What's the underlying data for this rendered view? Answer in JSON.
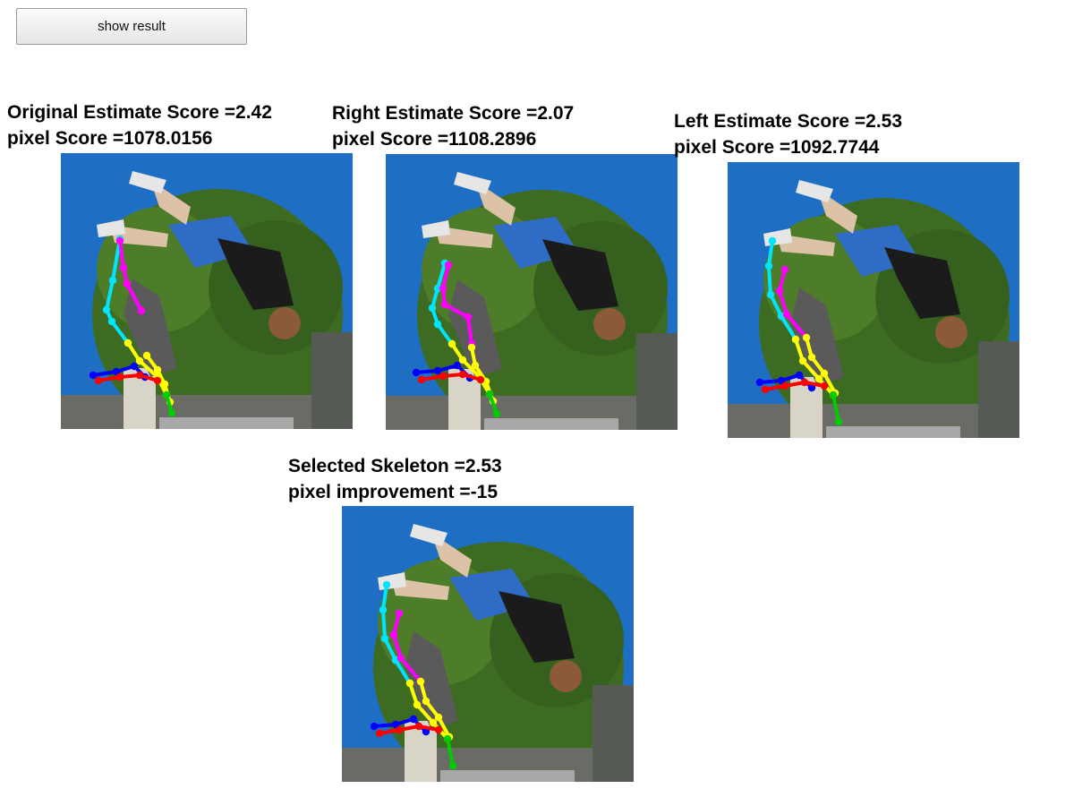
{
  "controls": {
    "show_result_label": "show result"
  },
  "panels": [
    {
      "id": "original",
      "line1": "Original Estimate Score =2.42",
      "line2": "pixel Score =1078.0156",
      "variant": "original"
    },
    {
      "id": "right",
      "line1": "Right Estimate Score =2.07",
      "line2": "pixel Score =1108.2896",
      "variant": "right"
    },
    {
      "id": "left",
      "line1": "Left Estimate Score =2.53",
      "line2": "pixel Score =1092.7744",
      "variant": "left"
    },
    {
      "id": "selected",
      "line1": "Selected Skeleton =2.53",
      "line2": "pixel improvement =-15",
      "variant": "left"
    }
  ],
  "colors": {
    "sky": "#1e6fc4",
    "tree": "#3d6b22",
    "limb_cyan": "#00e5ff",
    "limb_magenta": "#ff00ff",
    "limb_yellow": "#ffff00",
    "limb_blue": "#0000ff",
    "limb_red": "#ff0000",
    "limb_green": "#00cc00"
  }
}
